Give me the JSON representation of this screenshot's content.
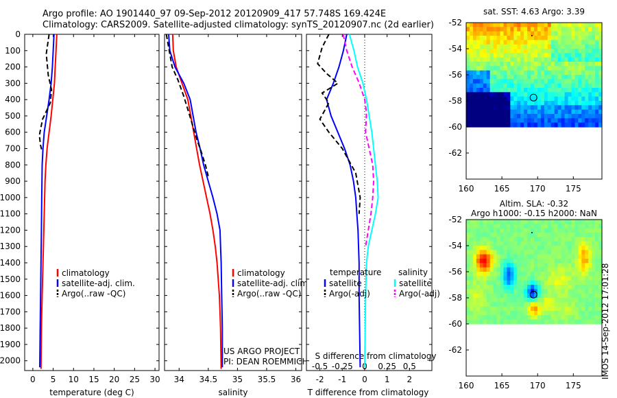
{
  "header": {
    "line1": "Argo profile: AO 1901440_97 09-Sep-2012 20120909_417 57.748S 169.424E",
    "line2": "Climatology: CARS2009. Satellite-adjusted climatology: synTS_20120907.nc (2d earlier)"
  },
  "colors": {
    "climatology": "#ff0000",
    "satellite": "#0000ff",
    "argo": "#000000",
    "salinity_satellite": "#00ffff",
    "salinity_argo": "#ff00ff"
  },
  "chart_data": [
    {
      "type": "line",
      "name": "temperature",
      "xlabel": "temperature (deg C)",
      "xlim": [
        -2,
        31
      ],
      "ylim": [
        2060,
        0
      ],
      "xticks": [
        "0",
        "5",
        "10",
        "15",
        "20",
        "25",
        "30"
      ],
      "yticks": [
        "0",
        "100",
        "200",
        "300",
        "400",
        "500",
        "600",
        "700",
        "800",
        "900",
        "1000",
        "1100",
        "1200",
        "1300",
        "1400",
        "1500",
        "1600",
        "1700",
        "1800",
        "1900",
        "2000"
      ],
      "legend": [
        "climatology",
        "satellite-adj. clim.",
        "Argo(..raw -QC)"
      ],
      "series": [
        {
          "name": "climatology",
          "x": [
            5.9,
            5.7,
            5.5,
            5.3,
            4.9,
            4.5,
            4.0,
            3.5,
            3.2,
            3.0,
            2.9,
            2.8,
            2.7,
            2.6,
            2.5,
            2.4,
            2.3,
            2.2,
            2.1,
            2.0
          ],
          "y": [
            0,
            100,
            200,
            300,
            400,
            500,
            600,
            700,
            800,
            900,
            1000,
            1100,
            1200,
            1300,
            1400,
            1500,
            1600,
            1700,
            1800,
            2050
          ]
        },
        {
          "name": "satellite-adj. clim.",
          "x": [
            5.2,
            5.0,
            4.8,
            4.5,
            4.0,
            3.4,
            2.8,
            2.5,
            2.3,
            2.2,
            2.1,
            2.0,
            1.9,
            1.8,
            1.7
          ],
          "y": [
            0,
            100,
            200,
            300,
            400,
            500,
            600,
            700,
            800,
            1000,
            1200,
            1400,
            1600,
            1800,
            2040
          ]
        },
        {
          "name": "Argo(..raw -QC)",
          "x": [
            4.0,
            3.3,
            3.8,
            4.6,
            4.3,
            2.4,
            1.6,
            1.9,
            2.3
          ],
          "y": [
            0,
            120,
            250,
            340,
            420,
            520,
            620,
            680,
            720
          ]
        }
      ]
    },
    {
      "type": "line",
      "name": "salinity",
      "xlabel": "salinity",
      "xlim": [
        33.75,
        36.1
      ],
      "ylim": [
        2060,
        0
      ],
      "xticks": [
        "34",
        "34.5",
        "35",
        "35.5",
        "36"
      ],
      "legend": [
        "climatology",
        "satellite-adj. clim.",
        "Argo(..raw -QC)"
      ],
      "annotations": [
        "US ARGO PROJECT",
        "PI: DEAN ROEMMICH"
      ],
      "series": [
        {
          "name": "climatology",
          "x": [
            33.89,
            33.9,
            33.95,
            34.05,
            34.15,
            34.2,
            34.25,
            34.3,
            34.35,
            34.41,
            34.47,
            34.53,
            34.58,
            34.62,
            34.65,
            34.67,
            34.69,
            34.7,
            34.71,
            34.72
          ],
          "y": [
            0,
            100,
            200,
            300,
            400,
            500,
            600,
            700,
            800,
            900,
            1000,
            1100,
            1200,
            1300,
            1400,
            1500,
            1600,
            1700,
            1800,
            2050
          ]
        },
        {
          "name": "satellite-adj. clim.",
          "x": [
            33.82,
            33.84,
            33.93,
            34.08,
            34.19,
            34.24,
            34.29,
            34.36,
            34.42,
            34.5,
            34.58,
            34.65,
            34.7,
            34.72,
            34.73,
            34.74,
            34.74,
            34.74
          ],
          "y": [
            0,
            100,
            200,
            300,
            400,
            500,
            600,
            700,
            800,
            900,
            1000,
            1100,
            1200,
            1400,
            1600,
            1800,
            1900,
            2040
          ]
        },
        {
          "name": "Argo(..raw -QC)",
          "x": [
            33.78,
            33.88,
            33.98,
            34.08,
            34.14,
            34.2,
            34.3,
            34.38,
            34.45,
            34.5
          ],
          "y": [
            0,
            200,
            280,
            380,
            450,
            520,
            640,
            720,
            800,
            870
          ]
        }
      ]
    },
    {
      "type": "line",
      "name": "difference",
      "xlabel": "T difference from climatology",
      "xlabel_top": "S difference from climatology",
      "xlim": [
        -2.6,
        3.0
      ],
      "ylim": [
        2060,
        0
      ],
      "xticks_T": [
        "-2",
        "-1",
        "0",
        "1",
        "2"
      ],
      "xticks_S": [
        "-0.5",
        "-0.25",
        "0",
        "0.25",
        "0.5"
      ],
      "legend_titles": [
        "temperature",
        "salinity"
      ],
      "legend_temperature": [
        "satellite",
        "Argo(-adj)"
      ],
      "legend_salinity": [
        "satellite",
        "Argo(-adj)"
      ],
      "series": [
        {
          "name": "temperature satellite",
          "x": [
            -0.8,
            -0.95,
            -1.15,
            -1.4,
            -1.7,
            -1.5,
            -1.2,
            -0.9,
            -0.65,
            -0.5,
            -0.4,
            -0.35,
            -0.3,
            -0.25,
            -0.25,
            -0.2
          ],
          "y": [
            0,
            100,
            200,
            300,
            400,
            500,
            600,
            700,
            800,
            900,
            1000,
            1100,
            1200,
            1400,
            1600,
            2040
          ]
        },
        {
          "name": "temperature Argo(-adj)",
          "x": [
            -1.6,
            -1.9,
            -2.1,
            -1.7,
            -1.2,
            -1.9,
            -1.6,
            -2.0,
            -1.6,
            -1.0,
            -0.4,
            -0.2,
            -0.25
          ],
          "y": [
            0,
            80,
            180,
            240,
            300,
            360,
            420,
            520,
            600,
            700,
            850,
            1000,
            1100
          ]
        },
        {
          "name": "salinity satellite",
          "x": [
            -0.17,
            -0.12,
            -0.08,
            -0.02,
            0.02,
            0.05,
            0.08,
            0.1,
            0.12,
            0.14,
            0.15,
            0.12,
            0.08,
            0.04,
            0.02,
            0.01,
            0.0
          ],
          "y": [
            0,
            100,
            200,
            300,
            400,
            500,
            600,
            700,
            800,
            900,
            1000,
            1100,
            1200,
            1300,
            1400,
            1600,
            2040
          ]
        },
        {
          "name": "salinity Argo(-adj)",
          "x": [
            -0.24,
            -0.2,
            -0.14,
            -0.06,
            0.0,
            0.02,
            0.01,
            0.05,
            0.09,
            0.1,
            0.09,
            0.07,
            0.04,
            0.01
          ],
          "y": [
            0,
            100,
            200,
            300,
            400,
            480,
            600,
            700,
            800,
            900,
            1000,
            1100,
            1200,
            1300
          ]
        }
      ]
    },
    {
      "type": "heatmap",
      "name": "sst-map",
      "title": "sat. SST: 4.63 Argo: 3.39",
      "xlim": [
        160,
        179
      ],
      "ylim": [
        -64,
        -52
      ],
      "xticks": [
        "160",
        "165",
        "170",
        "175"
      ],
      "yticks": [
        "-52",
        "-54",
        "-56",
        "-58",
        "-60",
        "-62"
      ],
      "marker": {
        "lon": 169.424,
        "lat": -57.748
      }
    },
    {
      "type": "heatmap",
      "name": "sla-map",
      "title": "Altim. SLA: -0.32",
      "subtitle": "Argo h1000: -0.15 h2000: NaN",
      "xlim": [
        160,
        179
      ],
      "ylim": [
        -64,
        -52
      ],
      "xticks": [
        "160",
        "165",
        "170",
        "175"
      ],
      "yticks": [
        "-52",
        "-54",
        "-56",
        "-58",
        "-60",
        "-62"
      ],
      "marker": {
        "lon": 169.424,
        "lat": -57.748
      }
    }
  ],
  "footer": {
    "stamp": "IMOS 14-Sep-2012 17:01:28"
  }
}
